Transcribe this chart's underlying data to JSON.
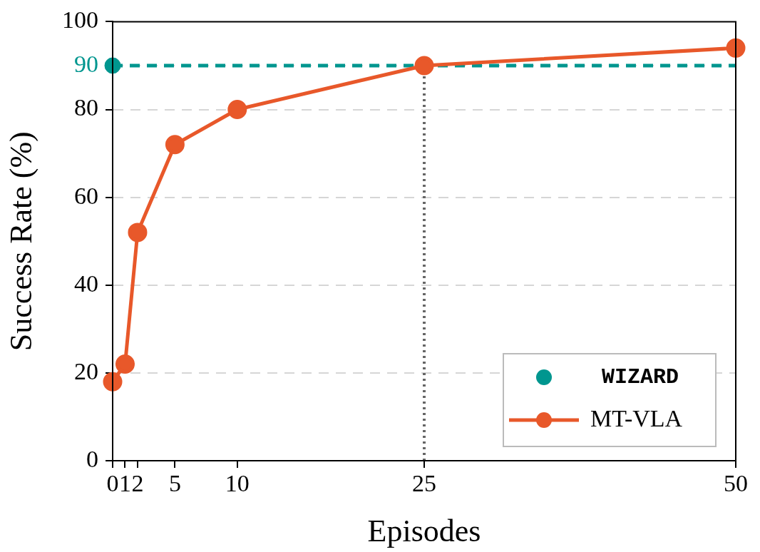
{
  "chart_data": {
    "type": "line",
    "xlabel": "Episodes",
    "ylabel": "Success Rate (%)",
    "xlim": [
      0,
      50
    ],
    "xticks": [
      0,
      1,
      2,
      5,
      10,
      25,
      50
    ],
    "ylim": [
      0,
      100
    ],
    "yticks": [
      0,
      20,
      40,
      60,
      80,
      90,
      100
    ],
    "grid": "y",
    "legend": "bottom right",
    "marker": "circle",
    "line_style": "solid",
    "series": [
      {
        "name": "WIZARD",
        "type": "scatter",
        "color": "#00968f",
        "x": [
          0
        ],
        "values": [
          90
        ]
      },
      {
        "name": "MT-VLA",
        "type": "line",
        "color": "#e8582a",
        "x": [
          0,
          1,
          2,
          5,
          10,
          25,
          50
        ],
        "values": [
          18,
          22,
          52,
          72,
          80,
          90,
          94
        ]
      }
    ],
    "ref_lines": [
      {
        "axis": "y",
        "value": 90,
        "color": "#00968f",
        "line_style": "dashed"
      },
      {
        "axis": "x",
        "value": 25,
        "color": "#666666",
        "line_style": "dotted"
      }
    ]
  }
}
